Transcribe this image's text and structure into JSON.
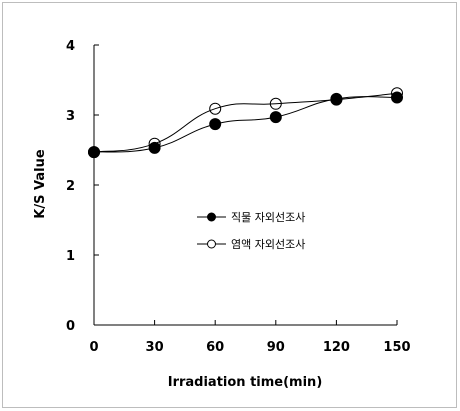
{
  "chart_data": {
    "type": "line",
    "title": "",
    "xlabel": "Irradiation time(min)",
    "ylabel": "K/S Value",
    "x": [
      0,
      30,
      60,
      90,
      120,
      150
    ],
    "xlim": [
      0,
      150
    ],
    "ylim": [
      0,
      4
    ],
    "x_ticks": [
      "0",
      "30",
      "60",
      "90",
      "120",
      "150"
    ],
    "y_ticks": [
      "0",
      "1",
      "2",
      "3",
      "4"
    ],
    "grid": false,
    "legend_position": "center",
    "smooth": true,
    "series": [
      {
        "name": "직물 자외선조사",
        "marker": "filled-circle",
        "color": "#000000",
        "values": [
          2.47,
          2.53,
          2.87,
          2.97,
          3.23,
          3.25
        ]
      },
      {
        "name": "염액 자외선조사",
        "marker": "open-circle",
        "color": "#000000",
        "values": [
          2.47,
          2.59,
          3.09,
          3.16,
          3.22,
          3.31
        ]
      }
    ]
  }
}
